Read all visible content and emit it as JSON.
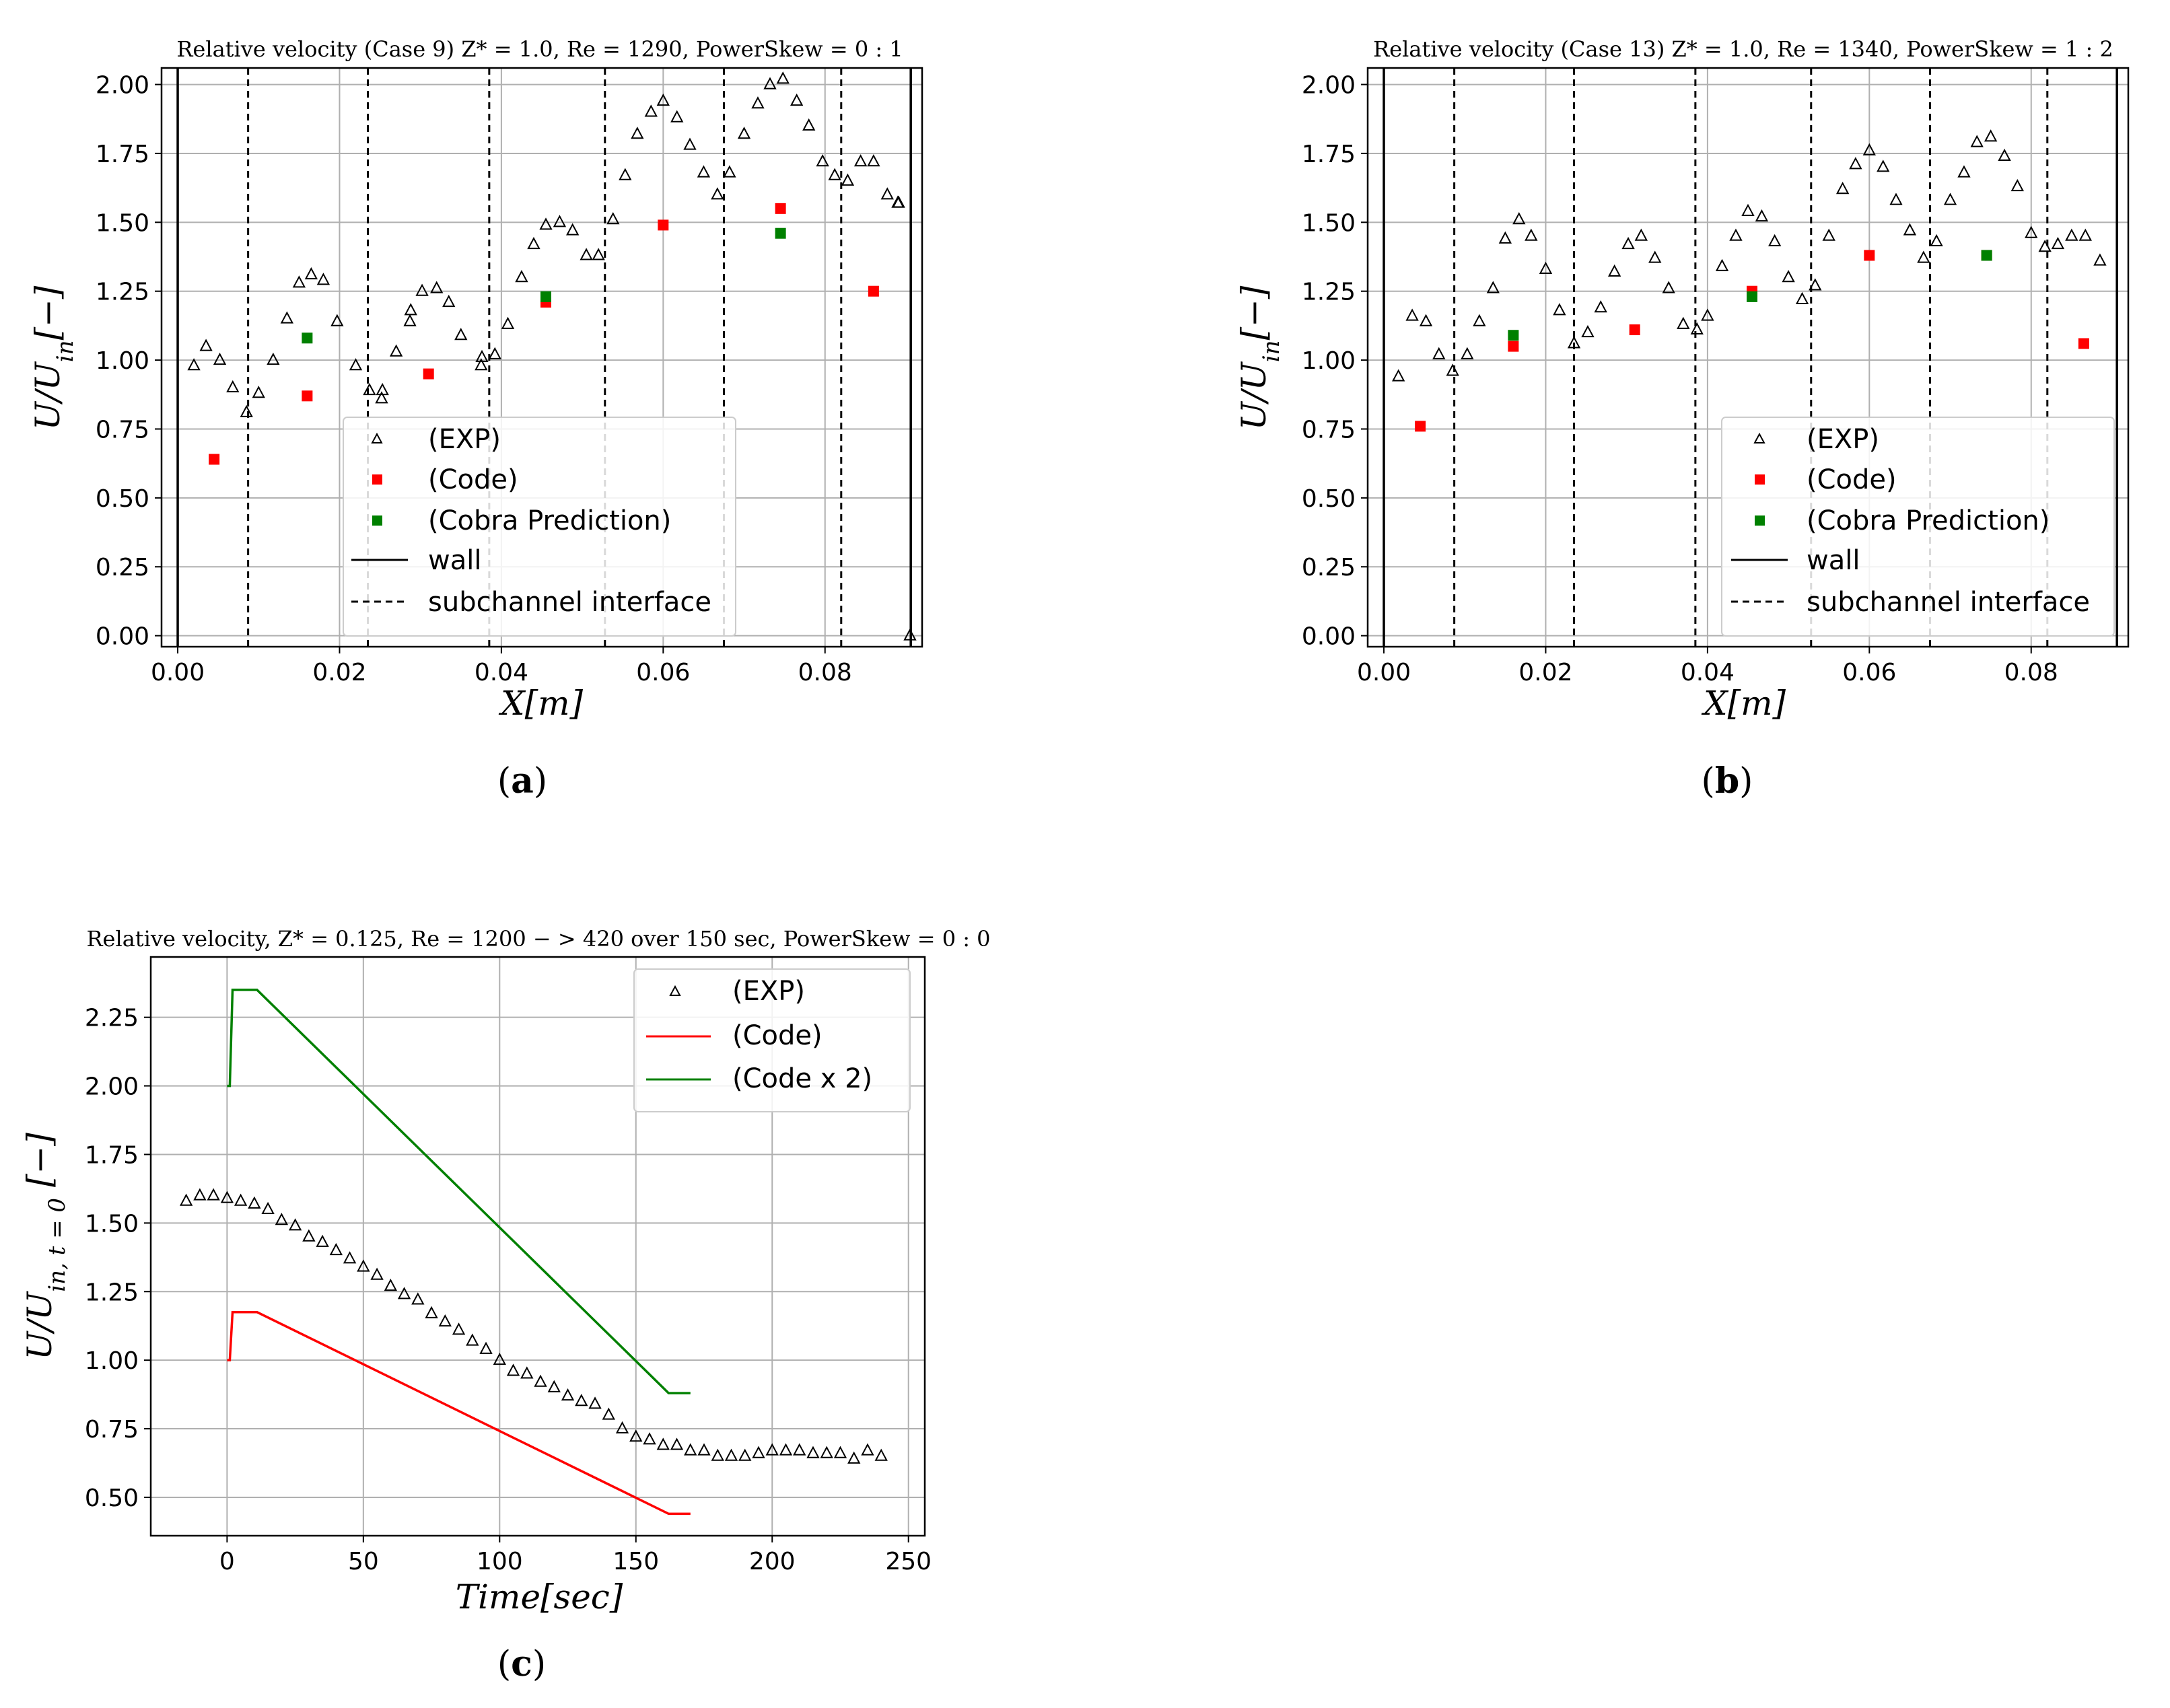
{
  "chart_data": [
    {
      "id": "a",
      "type": "scatter",
      "panel_label": "a",
      "title": "Relative velocity (Case 9) Z* = 1.0, Re = 1290, PowerSkew = 0 : 1",
      "xlabel": "X[m]",
      "ylabel": "U/U_in[−]",
      "xlim": [
        -0.002,
        0.092
      ],
      "ylim": [
        -0.04,
        2.06
      ],
      "xticks": [
        0.0,
        0.02,
        0.04,
        0.06,
        0.08
      ],
      "xtick_labels": [
        "0.00",
        "0.02",
        "0.04",
        "0.06",
        "0.08"
      ],
      "yticks": [
        0.0,
        0.25,
        0.5,
        0.75,
        1.0,
        1.25,
        1.5,
        1.75,
        2.0
      ],
      "ytick_labels": [
        "0.00",
        "0.25",
        "0.50",
        "0.75",
        "1.00",
        "1.25",
        "1.50",
        "1.75",
        "2.00"
      ],
      "walls": [
        0.0,
        0.0906
      ],
      "interfaces": [
        0.0087,
        0.0235,
        0.0385,
        0.0528,
        0.0675,
        0.082
      ],
      "series": [
        {
          "name": "(EXP)",
          "marker": "triangle",
          "color": "#000000",
          "x": [
            0.002,
            0.0035,
            0.0052,
            0.0068,
            0.0085,
            0.01,
            0.0118,
            0.0135,
            0.015,
            0.0165,
            0.018,
            0.0197,
            0.022,
            0.0237,
            0.0252,
            0.0253,
            0.027,
            0.0287,
            0.0288,
            0.0302,
            0.032,
            0.0335,
            0.035,
            0.0375,
            0.0376,
            0.0392,
            0.0408,
            0.0425,
            0.044,
            0.0455,
            0.0472,
            0.0488,
            0.0505,
            0.052,
            0.0538,
            0.0553,
            0.0568,
            0.0585,
            0.06,
            0.0617,
            0.0633,
            0.065,
            0.0667,
            0.0682,
            0.07,
            0.0717,
            0.0732,
            0.0748,
            0.0765,
            0.078,
            0.0797,
            0.0812,
            0.0828,
            0.0844,
            0.086,
            0.0877,
            0.089,
            0.0891,
            0.0905
          ],
          "y": [
            0.98,
            1.05,
            1.0,
            0.9,
            0.81,
            0.88,
            1.0,
            1.15,
            1.28,
            1.31,
            1.29,
            1.14,
            0.98,
            0.89,
            0.86,
            0.89,
            1.03,
            1.14,
            1.18,
            1.25,
            1.26,
            1.21,
            1.09,
            0.98,
            1.01,
            1.02,
            1.13,
            1.3,
            1.42,
            1.49,
            1.5,
            1.47,
            1.38,
            1.38,
            1.51,
            1.67,
            1.82,
            1.9,
            1.94,
            1.88,
            1.78,
            1.68,
            1.6,
            1.68,
            1.82,
            1.93,
            2.0,
            2.02,
            1.94,
            1.85,
            1.72,
            1.67,
            1.65,
            1.72,
            1.72,
            1.6,
            1.57,
            1.57,
            0.0
          ]
        },
        {
          "name": "(Code)",
          "marker": "square",
          "color": "#ff0000",
          "x": [
            0.0045,
            0.016,
            0.031,
            0.0455,
            0.06,
            0.0745,
            0.086
          ],
          "y": [
            0.64,
            0.87,
            0.95,
            1.21,
            1.49,
            1.55,
            1.25
          ]
        },
        {
          "name": "(Cobra Prediction)",
          "marker": "square",
          "color": "#008000",
          "x": [
            0.016,
            0.0455,
            0.0745
          ],
          "y": [
            1.08,
            1.23,
            1.46
          ]
        }
      ],
      "legend": {
        "placement": "lower-right",
        "entries": [
          "(EXP)",
          "(Code)",
          "(Cobra Prediction)",
          "wall",
          "subchannel interface"
        ]
      }
    },
    {
      "id": "b",
      "type": "scatter",
      "panel_label": "b",
      "title": "Relative velocity (Case 13) Z* = 1.0, Re = 1340, PowerSkew = 1 : 2",
      "xlabel": "X[m]",
      "ylabel": "U/U_in[−]",
      "xlim": [
        -0.002,
        0.092
      ],
      "ylim": [
        -0.04,
        2.06
      ],
      "xticks": [
        0.0,
        0.02,
        0.04,
        0.06,
        0.08
      ],
      "xtick_labels": [
        "0.00",
        "0.02",
        "0.04",
        "0.06",
        "0.08"
      ],
      "yticks": [
        0.0,
        0.25,
        0.5,
        0.75,
        1.0,
        1.25,
        1.5,
        1.75,
        2.0
      ],
      "ytick_labels": [
        "0.00",
        "0.25",
        "0.50",
        "0.75",
        "1.00",
        "1.25",
        "1.50",
        "1.75",
        "2.00"
      ],
      "walls": [
        0.0,
        0.0906
      ],
      "interfaces": [
        0.0087,
        0.0235,
        0.0385,
        0.0528,
        0.0675,
        0.082
      ],
      "series": [
        {
          "name": "(EXP)",
          "marker": "triangle",
          "color": "#000000",
          "x": [
            0.0018,
            0.0035,
            0.0052,
            0.0068,
            0.0085,
            0.0103,
            0.0118,
            0.0135,
            0.015,
            0.0167,
            0.0182,
            0.02,
            0.0217,
            0.0235,
            0.0252,
            0.0268,
            0.0285,
            0.0302,
            0.0318,
            0.0335,
            0.0352,
            0.037,
            0.0387,
            0.04,
            0.0418,
            0.0435,
            0.045,
            0.0467,
            0.0483,
            0.05,
            0.0517,
            0.0533,
            0.055,
            0.0567,
            0.0583,
            0.06,
            0.0617,
            0.0633,
            0.065,
            0.0667,
            0.0683,
            0.07,
            0.0717,
            0.0733,
            0.075,
            0.0767,
            0.0783,
            0.08,
            0.0817,
            0.0833,
            0.085,
            0.0867,
            0.0885
          ],
          "y": [
            0.94,
            1.16,
            1.14,
            1.02,
            0.96,
            1.02,
            1.14,
            1.26,
            1.44,
            1.51,
            1.45,
            1.33,
            1.18,
            1.06,
            1.1,
            1.19,
            1.32,
            1.42,
            1.45,
            1.37,
            1.26,
            1.13,
            1.11,
            1.16,
            1.34,
            1.45,
            1.54,
            1.52,
            1.43,
            1.3,
            1.22,
            1.27,
            1.45,
            1.62,
            1.71,
            1.76,
            1.7,
            1.58,
            1.47,
            1.37,
            1.43,
            1.58,
            1.68,
            1.79,
            1.81,
            1.74,
            1.63,
            1.46,
            1.41,
            1.42,
            1.45,
            1.45,
            1.36
          ]
        },
        {
          "name": "(Code)",
          "marker": "square",
          "color": "#ff0000",
          "x": [
            0.0045,
            0.016,
            0.031,
            0.0455,
            0.06,
            0.0745,
            0.0865
          ],
          "y": [
            0.76,
            1.05,
            1.11,
            1.25,
            1.38,
            1.38,
            1.06
          ]
        },
        {
          "name": "(Cobra Prediction)",
          "marker": "square",
          "color": "#008000",
          "x": [
            0.016,
            0.0455,
            0.0745
          ],
          "y": [
            1.09,
            1.23,
            1.38
          ]
        }
      ],
      "legend": {
        "placement": "lower-right",
        "entries": [
          "(EXP)",
          "(Code)",
          "(Cobra Prediction)",
          "wall",
          "subchannel interface"
        ]
      }
    },
    {
      "id": "c",
      "type": "line",
      "panel_label": "c",
      "title": "Relative velocity, Z* = 0.125, Re = 1200 − > 420 over 150 sec, PowerSkew = 0 : 0",
      "xlabel": "Time[sec]",
      "ylabel": "U/U_in, t=0 [−]",
      "xlim": [
        -28,
        256
      ],
      "ylim": [
        0.36,
        2.47
      ],
      "xticks": [
        0,
        50,
        100,
        150,
        200,
        250
      ],
      "xtick_labels": [
        "0",
        "50",
        "100",
        "150",
        "200",
        "250"
      ],
      "yticks": [
        0.5,
        0.75,
        1.0,
        1.25,
        1.5,
        1.75,
        2.0,
        2.25
      ],
      "ytick_labels": [
        "0.50",
        "0.75",
        "1.00",
        "1.25",
        "1.50",
        "1.75",
        "2.00",
        "2.25"
      ],
      "series": [
        {
          "name": "(EXP)",
          "marker": "triangle",
          "color": "#000000",
          "x": [
            -15,
            -10,
            -5,
            0,
            5,
            10,
            15,
            20,
            25,
            30,
            35,
            40,
            45,
            50,
            55,
            60,
            65,
            70,
            75,
            80,
            85,
            90,
            95,
            100,
            105,
            110,
            115,
            120,
            125,
            130,
            135,
            140,
            145,
            150,
            155,
            160,
            165,
            170,
            175,
            180,
            185,
            190,
            195,
            200,
            205,
            210,
            215,
            220,
            225,
            230,
            235,
            240
          ],
          "y": [
            1.58,
            1.6,
            1.6,
            1.59,
            1.58,
            1.57,
            1.55,
            1.51,
            1.49,
            1.45,
            1.43,
            1.4,
            1.37,
            1.34,
            1.31,
            1.27,
            1.24,
            1.22,
            1.17,
            1.14,
            1.11,
            1.07,
            1.04,
            1.0,
            0.96,
            0.95,
            0.92,
            0.9,
            0.87,
            0.85,
            0.84,
            0.8,
            0.75,
            0.72,
            0.71,
            0.69,
            0.69,
            0.67,
            0.67,
            0.65,
            0.65,
            0.65,
            0.66,
            0.67,
            0.67,
            0.67,
            0.66,
            0.66,
            0.66,
            0.64,
            0.67,
            0.65
          ]
        },
        {
          "name": "(Code)",
          "marker": "line",
          "color": "#ff0000",
          "x": [
            0,
            1,
            2,
            11,
            162,
            170
          ],
          "y": [
            1.0,
            1.0,
            1.175,
            1.175,
            0.44,
            0.44
          ]
        },
        {
          "name": "(Code x 2)",
          "marker": "line",
          "color": "#008000",
          "x": [
            0,
            1,
            2,
            11,
            162,
            170
          ],
          "y": [
            2.0,
            2.0,
            2.35,
            2.35,
            0.88,
            0.88
          ]
        }
      ],
      "legend": {
        "placement": "top-right",
        "entries": [
          "(EXP)",
          "(Code)",
          "(Code x 2)"
        ]
      }
    }
  ]
}
